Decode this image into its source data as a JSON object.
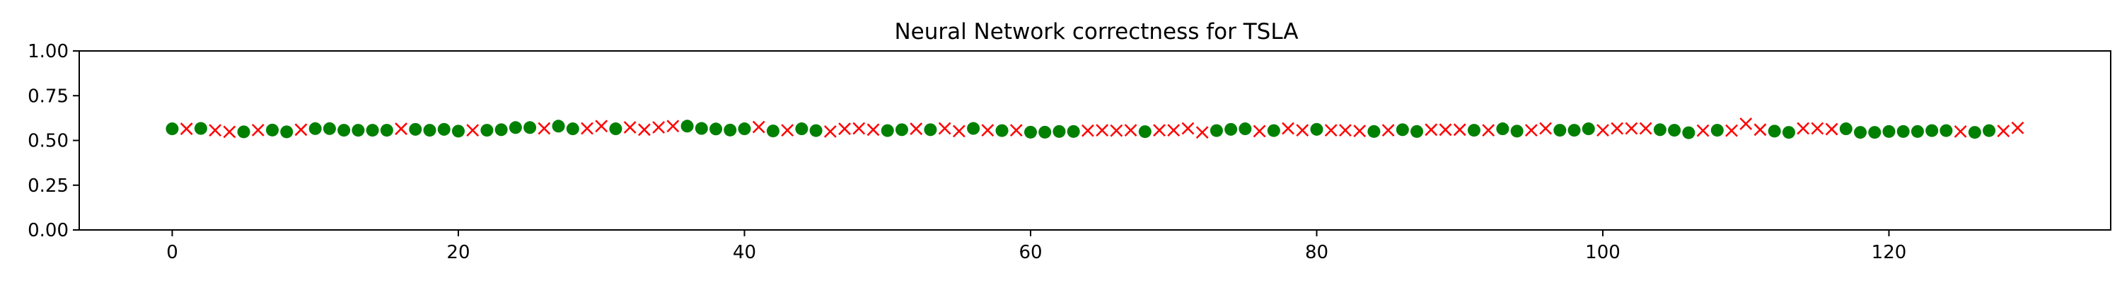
{
  "chart_data": {
    "type": "scatter",
    "title": "Neural Network correctness for TSLA",
    "xlabel": "",
    "ylabel": "",
    "xlim": [
      -6.5,
      135.5
    ],
    "ylim": [
      0,
      1
    ],
    "x_ticks": [
      0,
      20,
      40,
      60,
      80,
      100,
      120
    ],
    "y_ticks": [
      0.0,
      0.25,
      0.5,
      0.75,
      1.0
    ],
    "y_tick_labels": [
      "0.00",
      "0.25",
      "0.50",
      "0.75",
      "1.00"
    ],
    "grid": false,
    "legend": "none",
    "series": [
      {
        "marker": "circle",
        "color": "#008000",
        "points": [
          [
            0,
            0.565
          ],
          [
            2,
            0.567
          ],
          [
            5,
            0.548
          ],
          [
            7,
            0.558
          ],
          [
            8,
            0.548
          ],
          [
            10,
            0.566
          ],
          [
            11,
            0.566
          ],
          [
            12,
            0.557
          ],
          [
            13,
            0.557
          ],
          [
            14,
            0.557
          ],
          [
            15,
            0.557
          ],
          [
            17,
            0.562
          ],
          [
            18,
            0.557
          ],
          [
            19,
            0.562
          ],
          [
            20,
            0.552
          ],
          [
            22,
            0.557
          ],
          [
            23,
            0.56
          ],
          [
            24,
            0.572
          ],
          [
            25,
            0.572
          ],
          [
            27,
            0.58
          ],
          [
            28,
            0.565
          ],
          [
            31,
            0.565
          ],
          [
            36,
            0.58
          ],
          [
            37,
            0.567
          ],
          [
            38,
            0.564
          ],
          [
            39,
            0.558
          ],
          [
            40,
            0.565
          ],
          [
            42,
            0.553
          ],
          [
            44,
            0.565
          ],
          [
            45,
            0.555
          ],
          [
            50,
            0.555
          ],
          [
            51,
            0.56
          ],
          [
            53,
            0.56
          ],
          [
            56,
            0.567
          ],
          [
            58,
            0.555
          ],
          [
            60,
            0.546
          ],
          [
            61,
            0.546
          ],
          [
            62,
            0.55
          ],
          [
            63,
            0.55
          ],
          [
            68,
            0.549
          ],
          [
            73,
            0.555
          ],
          [
            74,
            0.562
          ],
          [
            75,
            0.565
          ],
          [
            77,
            0.555
          ],
          [
            80,
            0.562
          ],
          [
            84,
            0.55
          ],
          [
            86,
            0.56
          ],
          [
            87,
            0.55
          ],
          [
            91,
            0.557
          ],
          [
            93,
            0.565
          ],
          [
            94,
            0.552
          ],
          [
            97,
            0.557
          ],
          [
            98,
            0.557
          ],
          [
            99,
            0.565
          ],
          [
            104,
            0.56
          ],
          [
            105,
            0.557
          ],
          [
            106,
            0.543
          ],
          [
            108,
            0.557
          ],
          [
            112,
            0.552
          ],
          [
            113,
            0.545
          ],
          [
            117,
            0.565
          ],
          [
            118,
            0.545
          ],
          [
            119,
            0.545
          ],
          [
            120,
            0.55
          ],
          [
            121,
            0.55
          ],
          [
            122,
            0.55
          ],
          [
            123,
            0.555
          ],
          [
            124,
            0.555
          ],
          [
            126,
            0.545
          ],
          [
            127,
            0.555
          ]
        ]
      },
      {
        "marker": "x",
        "color": "#ff0000",
        "points": [
          [
            1,
            0.565
          ],
          [
            3,
            0.557
          ],
          [
            4,
            0.548
          ],
          [
            6,
            0.558
          ],
          [
            9,
            0.56
          ],
          [
            16,
            0.565
          ],
          [
            21,
            0.557
          ],
          [
            26,
            0.567
          ],
          [
            29,
            0.567
          ],
          [
            30,
            0.58
          ],
          [
            32,
            0.573
          ],
          [
            33,
            0.56
          ],
          [
            34,
            0.573
          ],
          [
            35,
            0.58
          ],
          [
            41,
            0.575
          ],
          [
            43,
            0.557
          ],
          [
            46,
            0.55
          ],
          [
            47,
            0.565
          ],
          [
            48,
            0.567
          ],
          [
            49,
            0.56
          ],
          [
            52,
            0.565
          ],
          [
            54,
            0.567
          ],
          [
            55,
            0.552
          ],
          [
            57,
            0.557
          ],
          [
            59,
            0.557
          ],
          [
            64,
            0.555
          ],
          [
            65,
            0.557
          ],
          [
            66,
            0.555
          ],
          [
            67,
            0.557
          ],
          [
            69,
            0.557
          ],
          [
            70,
            0.557
          ],
          [
            71,
            0.567
          ],
          [
            72,
            0.545
          ],
          [
            76,
            0.552
          ],
          [
            78,
            0.567
          ],
          [
            79,
            0.557
          ],
          [
            81,
            0.557
          ],
          [
            82,
            0.557
          ],
          [
            83,
            0.553
          ],
          [
            85,
            0.557
          ],
          [
            88,
            0.56
          ],
          [
            89,
            0.56
          ],
          [
            90,
            0.56
          ],
          [
            92,
            0.557
          ],
          [
            95,
            0.557
          ],
          [
            96,
            0.567
          ],
          [
            100,
            0.557
          ],
          [
            101,
            0.567
          ],
          [
            102,
            0.567
          ],
          [
            103,
            0.567
          ],
          [
            107,
            0.555
          ],
          [
            109,
            0.555
          ],
          [
            110,
            0.593
          ],
          [
            111,
            0.56
          ],
          [
            114,
            0.567
          ],
          [
            115,
            0.567
          ],
          [
            116,
            0.563
          ],
          [
            125,
            0.55
          ],
          [
            128,
            0.553
          ],
          [
            129,
            0.57
          ]
        ]
      }
    ]
  }
}
